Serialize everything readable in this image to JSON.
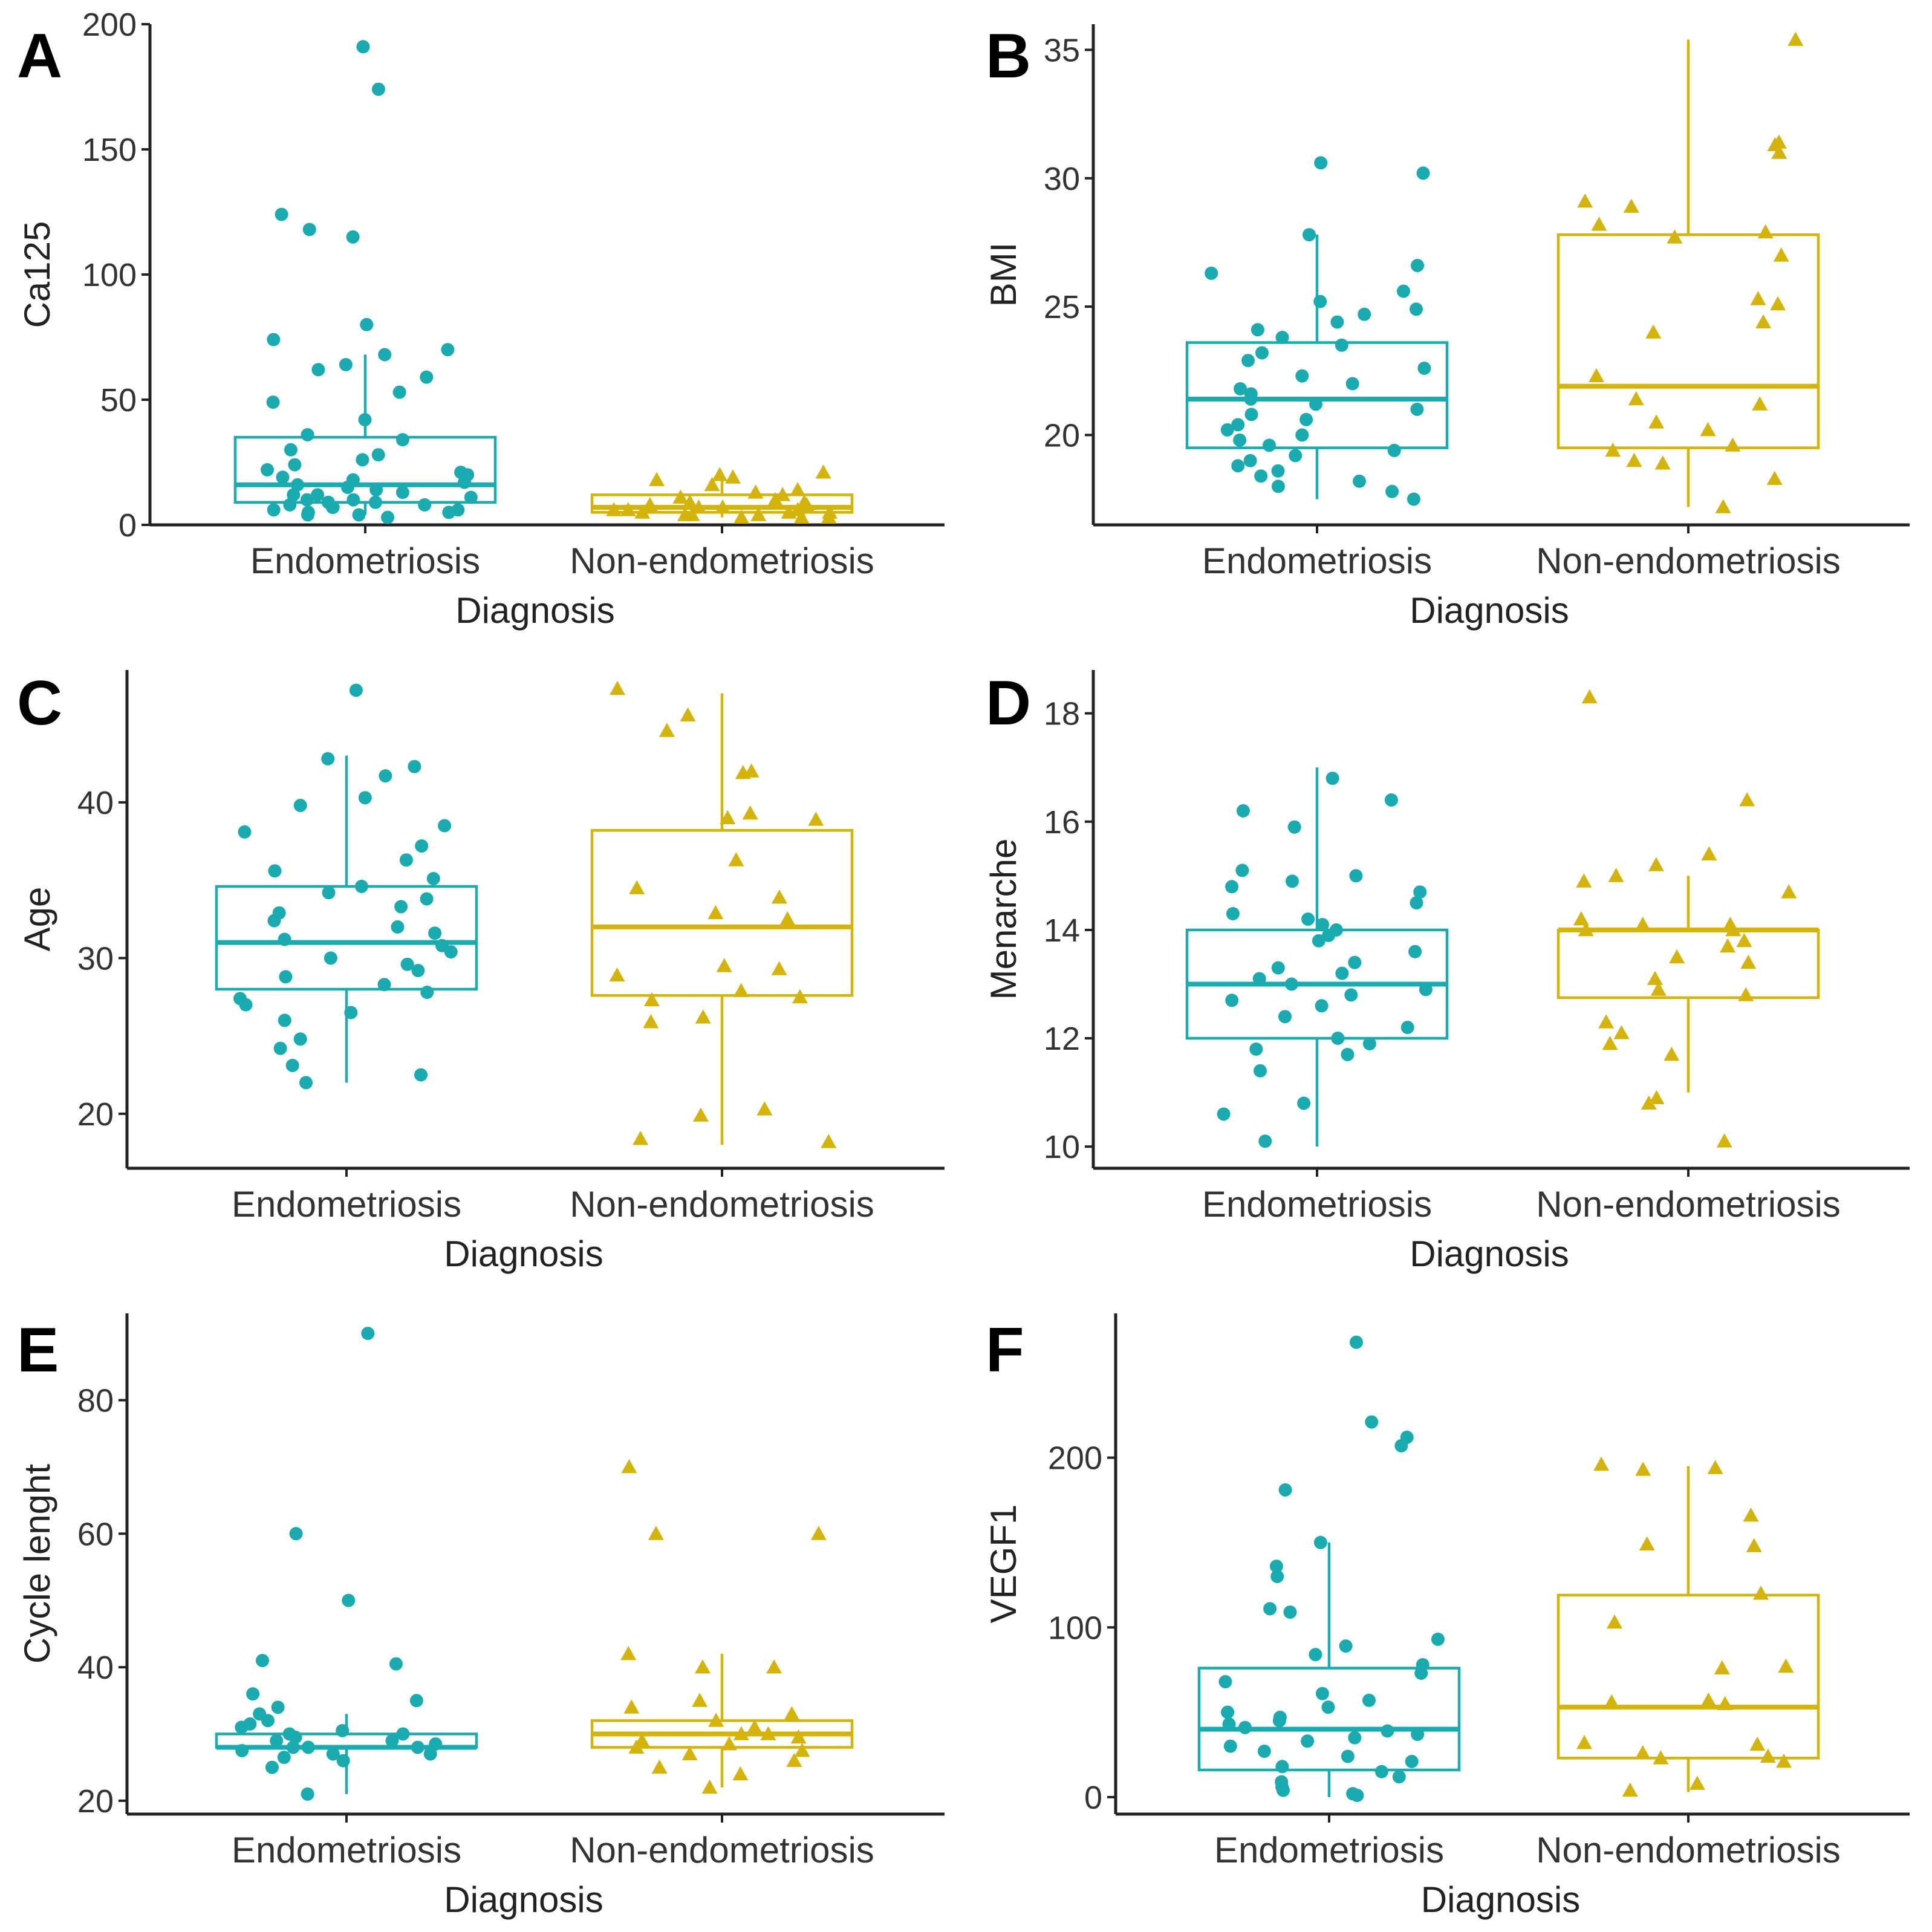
{
  "figure_colors": {
    "endometriosis": "#1aabb0",
    "non_endometriosis": "#d4b30a",
    "axis": "#222222"
  },
  "chart_data": [
    {
      "panel": "A",
      "type": "box",
      "title": "",
      "xlabel": "Diagnosis",
      "ylabel": "Ca125",
      "categories": [
        "Endometriosis",
        "Non-endometriosis"
      ],
      "ylim": [
        0,
        200
      ],
      "yticks": [
        0,
        50,
        100,
        150,
        200
      ],
      "boxes": [
        {
          "q1": 9,
          "median": 16,
          "q3": 35,
          "whisker_low": 4,
          "whisker_high": 68
        },
        {
          "q1": 5,
          "median": 7,
          "q3": 12,
          "whisker_low": 3,
          "whisker_high": 20
        }
      ],
      "points": [
        [
          191,
          174,
          124,
          118,
          115,
          80,
          74,
          70,
          68,
          64,
          62,
          59,
          53,
          49,
          42,
          36,
          34,
          30,
          28,
          26,
          24,
          22,
          21,
          20,
          19,
          18,
          17,
          16,
          15,
          14,
          13,
          12,
          12,
          11,
          10,
          10,
          9,
          9,
          8,
          8,
          7,
          7,
          6,
          6,
          5,
          5,
          4,
          4,
          3
        ],
        [
          21,
          20,
          19,
          18,
          16,
          14,
          13,
          12,
          11,
          10,
          9,
          9,
          8,
          8,
          7,
          7,
          6,
          6,
          6,
          5,
          5,
          5,
          4,
          4,
          4,
          3,
          3,
          3
        ]
      ]
    },
    {
      "panel": "B",
      "type": "box",
      "title": "",
      "xlabel": "Diagnosis",
      "ylabel": "BMI",
      "categories": [
        "Endometriosis",
        "Non-endometriosis"
      ],
      "ylim": [
        16.5,
        36
      ],
      "yticks": [
        20,
        25,
        30,
        35
      ],
      "boxes": [
        {
          "q1": 19.5,
          "median": 21.4,
          "q3": 23.6,
          "whisker_low": 17.5,
          "whisker_high": 27.8
        },
        {
          "q1": 19.5,
          "median": 21.9,
          "q3": 27.8,
          "whisker_low": 17.2,
          "whisker_high": 35.4
        }
      ],
      "points": [
        [
          30.6,
          30.2,
          27.8,
          26.6,
          26.3,
          25.6,
          25.2,
          24.9,
          24.7,
          24.4,
          24.1,
          23.8,
          23.5,
          23.2,
          22.9,
          22.6,
          22.3,
          22.0,
          21.8,
          21.6,
          21.4,
          21.2,
          21.0,
          20.8,
          20.6,
          20.4,
          20.2,
          20.0,
          19.8,
          19.6,
          19.4,
          19.2,
          19.0,
          18.8,
          18.6,
          18.4,
          18.2,
          18.0,
          17.8,
          17.5
        ],
        [
          35.4,
          31.4,
          31.3,
          31.0,
          29.1,
          28.9,
          28.2,
          27.9,
          27.7,
          27.0,
          25.3,
          25.1,
          24.4,
          24.0,
          22.3,
          21.4,
          21.2,
          20.5,
          20.2,
          19.6,
          19.4,
          19.0,
          18.9,
          18.3,
          17.2
        ]
      ]
    },
    {
      "panel": "C",
      "type": "box",
      "title": "",
      "xlabel": "Diagnosis",
      "ylabel": "Age",
      "categories": [
        "Endometriosis",
        "Non-endometriosis"
      ],
      "ylim": [
        16.5,
        48.5
      ],
      "yticks": [
        20,
        30,
        40
      ],
      "boxes": [
        {
          "q1": 28,
          "median": 31,
          "q3": 34.6,
          "whisker_low": 22,
          "whisker_high": 43
        },
        {
          "q1": 27.6,
          "median": 32,
          "q3": 38.2,
          "whisker_low": 18,
          "whisker_high": 47
        }
      ],
      "points": [
        [
          47.2,
          42.8,
          42.3,
          41.7,
          40.3,
          39.8,
          38.5,
          38.1,
          37.2,
          36.3,
          35.6,
          35.1,
          34.6,
          34.2,
          33.8,
          33.3,
          32.9,
          32.4,
          32.0,
          31.6,
          31.2,
          30.8,
          30.4,
          30.0,
          29.6,
          29.2,
          28.8,
          28.3,
          27.8,
          27.4,
          27.0,
          26.5,
          26.0,
          24.8,
          24.2,
          23.1,
          22.5,
          22.0
        ],
        [
          47.3,
          45.6,
          44.6,
          42.0,
          41.9,
          39.3,
          39.0,
          38.9,
          36.3,
          34.5,
          33.9,
          32.9,
          32.5,
          29.5,
          29.3,
          28.9,
          27.9,
          27.5,
          27.3,
          26.2,
          25.9,
          20.3,
          19.9,
          18.4,
          18.2
        ]
      ]
    },
    {
      "panel": "D",
      "type": "box",
      "title": "",
      "xlabel": "Diagnosis",
      "ylabel": "Menarche",
      "categories": [
        "Endometriosis",
        "Non-endometriosis"
      ],
      "ylim": [
        9.6,
        18.8
      ],
      "yticks": [
        10,
        12,
        14,
        16,
        18
      ],
      "boxes": [
        {
          "q1": 12,
          "median": 13,
          "q3": 14,
          "whisker_low": 10,
          "whisker_high": 17
        },
        {
          "q1": 12.75,
          "median": 14,
          "q3": 14,
          "whisker_low": 11,
          "whisker_high": 15
        }
      ],
      "points": [
        [
          16.8,
          16.4,
          16.2,
          15.9,
          15.1,
          15.0,
          14.9,
          14.8,
          14.7,
          14.5,
          14.3,
          14.2,
          14.1,
          14.0,
          13.9,
          13.8,
          13.6,
          13.4,
          13.3,
          13.2,
          13.1,
          13.0,
          12.9,
          12.8,
          12.7,
          12.6,
          12.4,
          12.2,
          12.0,
          11.9,
          11.8,
          11.7,
          11.4,
          10.8,
          10.6,
          10.1
        ],
        [
          18.3,
          16.4,
          15.4,
          15.2,
          15.0,
          14.9,
          14.7,
          14.2,
          14.1,
          14.1,
          14.0,
          14.0,
          13.8,
          13.7,
          13.5,
          13.4,
          13.1,
          12.9,
          12.8,
          12.3,
          12.1,
          11.9,
          11.7,
          10.9,
          10.8,
          10.1
        ]
      ]
    },
    {
      "panel": "E",
      "type": "box",
      "title": "",
      "xlabel": "Diagnosis",
      "ylabel": "Cycle lenght",
      "categories": [
        "Endometriosis",
        "Non-endometriosis"
      ],
      "ylim": [
        18,
        93
      ],
      "yticks": [
        20,
        40,
        60,
        80
      ],
      "boxes": [
        {
          "q1": 28,
          "median": 28,
          "q3": 30,
          "whisker_low": 21,
          "whisker_high": 33
        },
        {
          "q1": 28,
          "median": 30,
          "q3": 32,
          "whisker_low": 22,
          "whisker_high": 42
        }
      ],
      "points": [
        [
          90,
          60,
          50,
          41,
          40.5,
          36,
          35,
          34,
          33,
          32,
          31.5,
          31,
          30.5,
          30,
          30,
          29.5,
          29,
          29,
          28.5,
          28,
          28,
          28,
          27.5,
          27,
          27,
          26.5,
          26,
          25,
          21
        ],
        [
          70,
          60,
          60,
          42,
          40,
          40,
          35,
          34,
          33,
          32,
          31,
          30,
          30,
          29.5,
          29,
          28.5,
          28,
          27.5,
          27,
          26,
          25,
          24,
          22
        ]
      ]
    },
    {
      "panel": "F",
      "type": "box",
      "title": "",
      "xlabel": "Diagnosis",
      "ylabel": "VEGF1",
      "categories": [
        "Endometriosis",
        "Non-endometriosis"
      ],
      "ylim": [
        -10,
        285
      ],
      "yticks": [
        0,
        100,
        200
      ],
      "boxes": [
        {
          "q1": 16,
          "median": 40,
          "q3": 76,
          "whisker_low": 0,
          "whisker_high": 150
        },
        {
          "q1": 23,
          "median": 53,
          "q3": 119,
          "whisker_low": 3,
          "whisker_high": 195
        }
      ],
      "points": [
        [
          268,
          221,
          212,
          207,
          181,
          150,
          136,
          130,
          111,
          109,
          93,
          89,
          84,
          78,
          73,
          68,
          61,
          57,
          53,
          50,
          47,
          45,
          43,
          41,
          39,
          37,
          35,
          33,
          30,
          27,
          24,
          21,
          18,
          15,
          12,
          9,
          6,
          4,
          2,
          1
        ],
        [
          196,
          194,
          193,
          166,
          149,
          148,
          120,
          103,
          77,
          76,
          57,
          56,
          55,
          32,
          31,
          26,
          24,
          23,
          21,
          8,
          4
        ]
      ]
    }
  ]
}
